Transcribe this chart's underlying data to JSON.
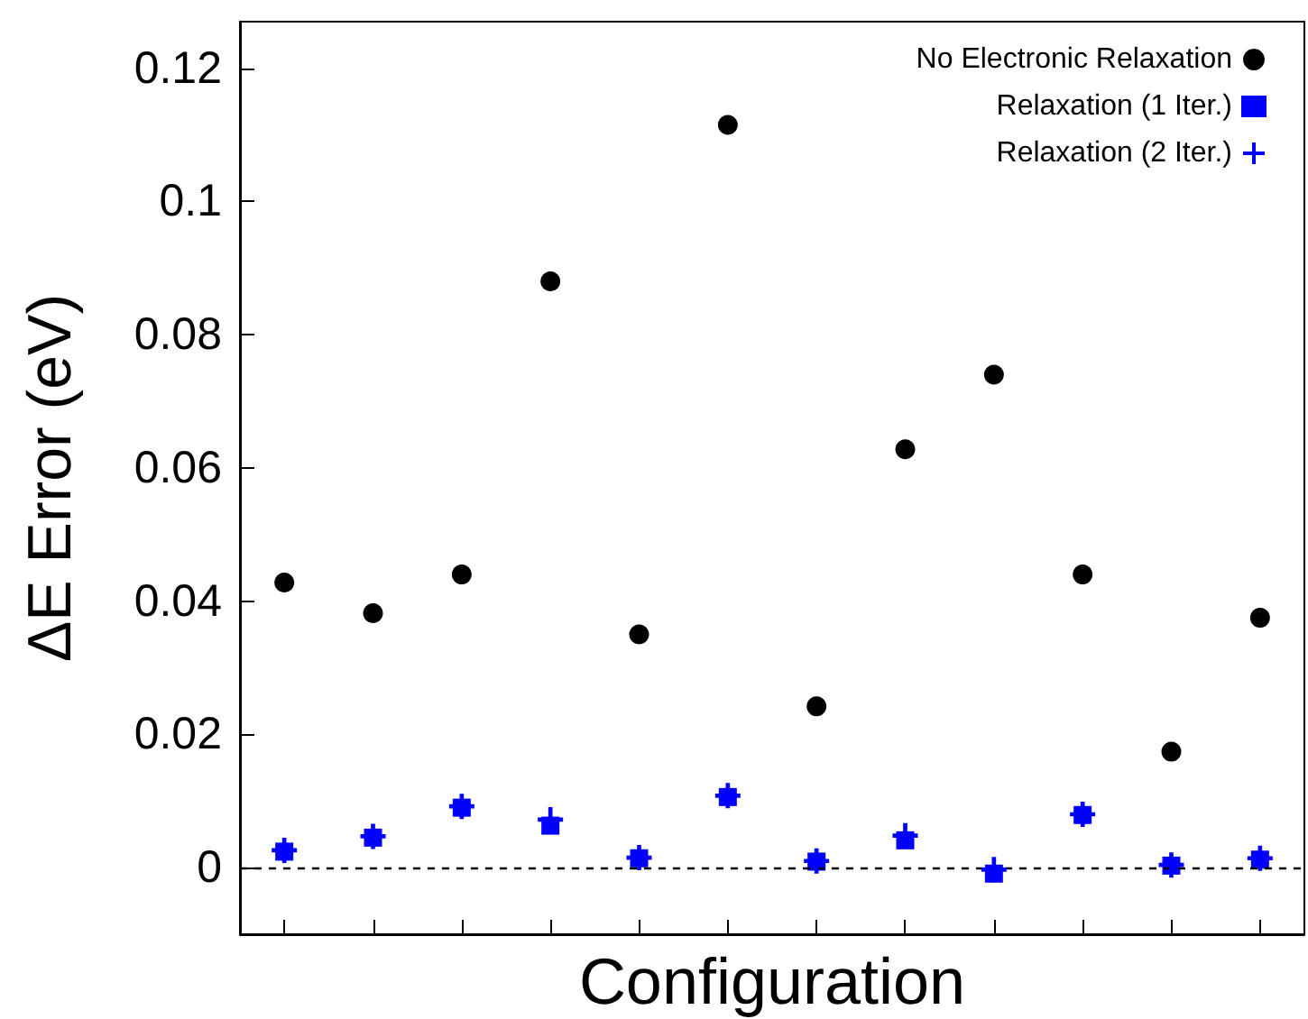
{
  "chart_data": {
    "type": "scatter",
    "xlabel": "Configuration",
    "ylabel": "ΔE Error (eV)",
    "categories": [
      null,
      null,
      null,
      null,
      null,
      null,
      null,
      null,
      null,
      null,
      null,
      null
    ],
    "series": [
      {
        "name": "No Electronic Relaxation",
        "color": "#000000",
        "marker": "circle",
        "values": [
          0.0428,
          0.0382,
          0.044,
          0.088,
          0.035,
          0.1115,
          0.0242,
          0.0628,
          0.074,
          0.044,
          0.0174,
          0.0375
        ]
      },
      {
        "name": "Relaxation (1 Iter.)",
        "color": "#0000ff",
        "marker": "square",
        "values": [
          0.0024,
          0.0045,
          0.009,
          0.0063,
          0.0014,
          0.0106,
          0.0009,
          0.0041,
          -0.0009,
          0.0079,
          0.0003,
          0.0012
        ]
      },
      {
        "name": "Relaxation (2 Iter.)",
        "color": "#0000ff",
        "marker": "cross",
        "values": [
          0.0026,
          0.0047,
          0.0092,
          0.0072,
          0.0015,
          0.0108,
          0.001,
          0.0048,
          -0.0003,
          0.008,
          0.0004,
          0.0014
        ]
      }
    ],
    "ylim": [
      -0.01,
      0.127
    ],
    "yticks": [
      0,
      0.02,
      0.04,
      0.06,
      0.08,
      0.1,
      0.12
    ],
    "ref_lines": [
      {
        "axis": "y",
        "value": 0,
        "color": "#000000",
        "line_style": "dashed"
      }
    ],
    "legend": "top right",
    "tick_labels": "y",
    "grid": false
  }
}
